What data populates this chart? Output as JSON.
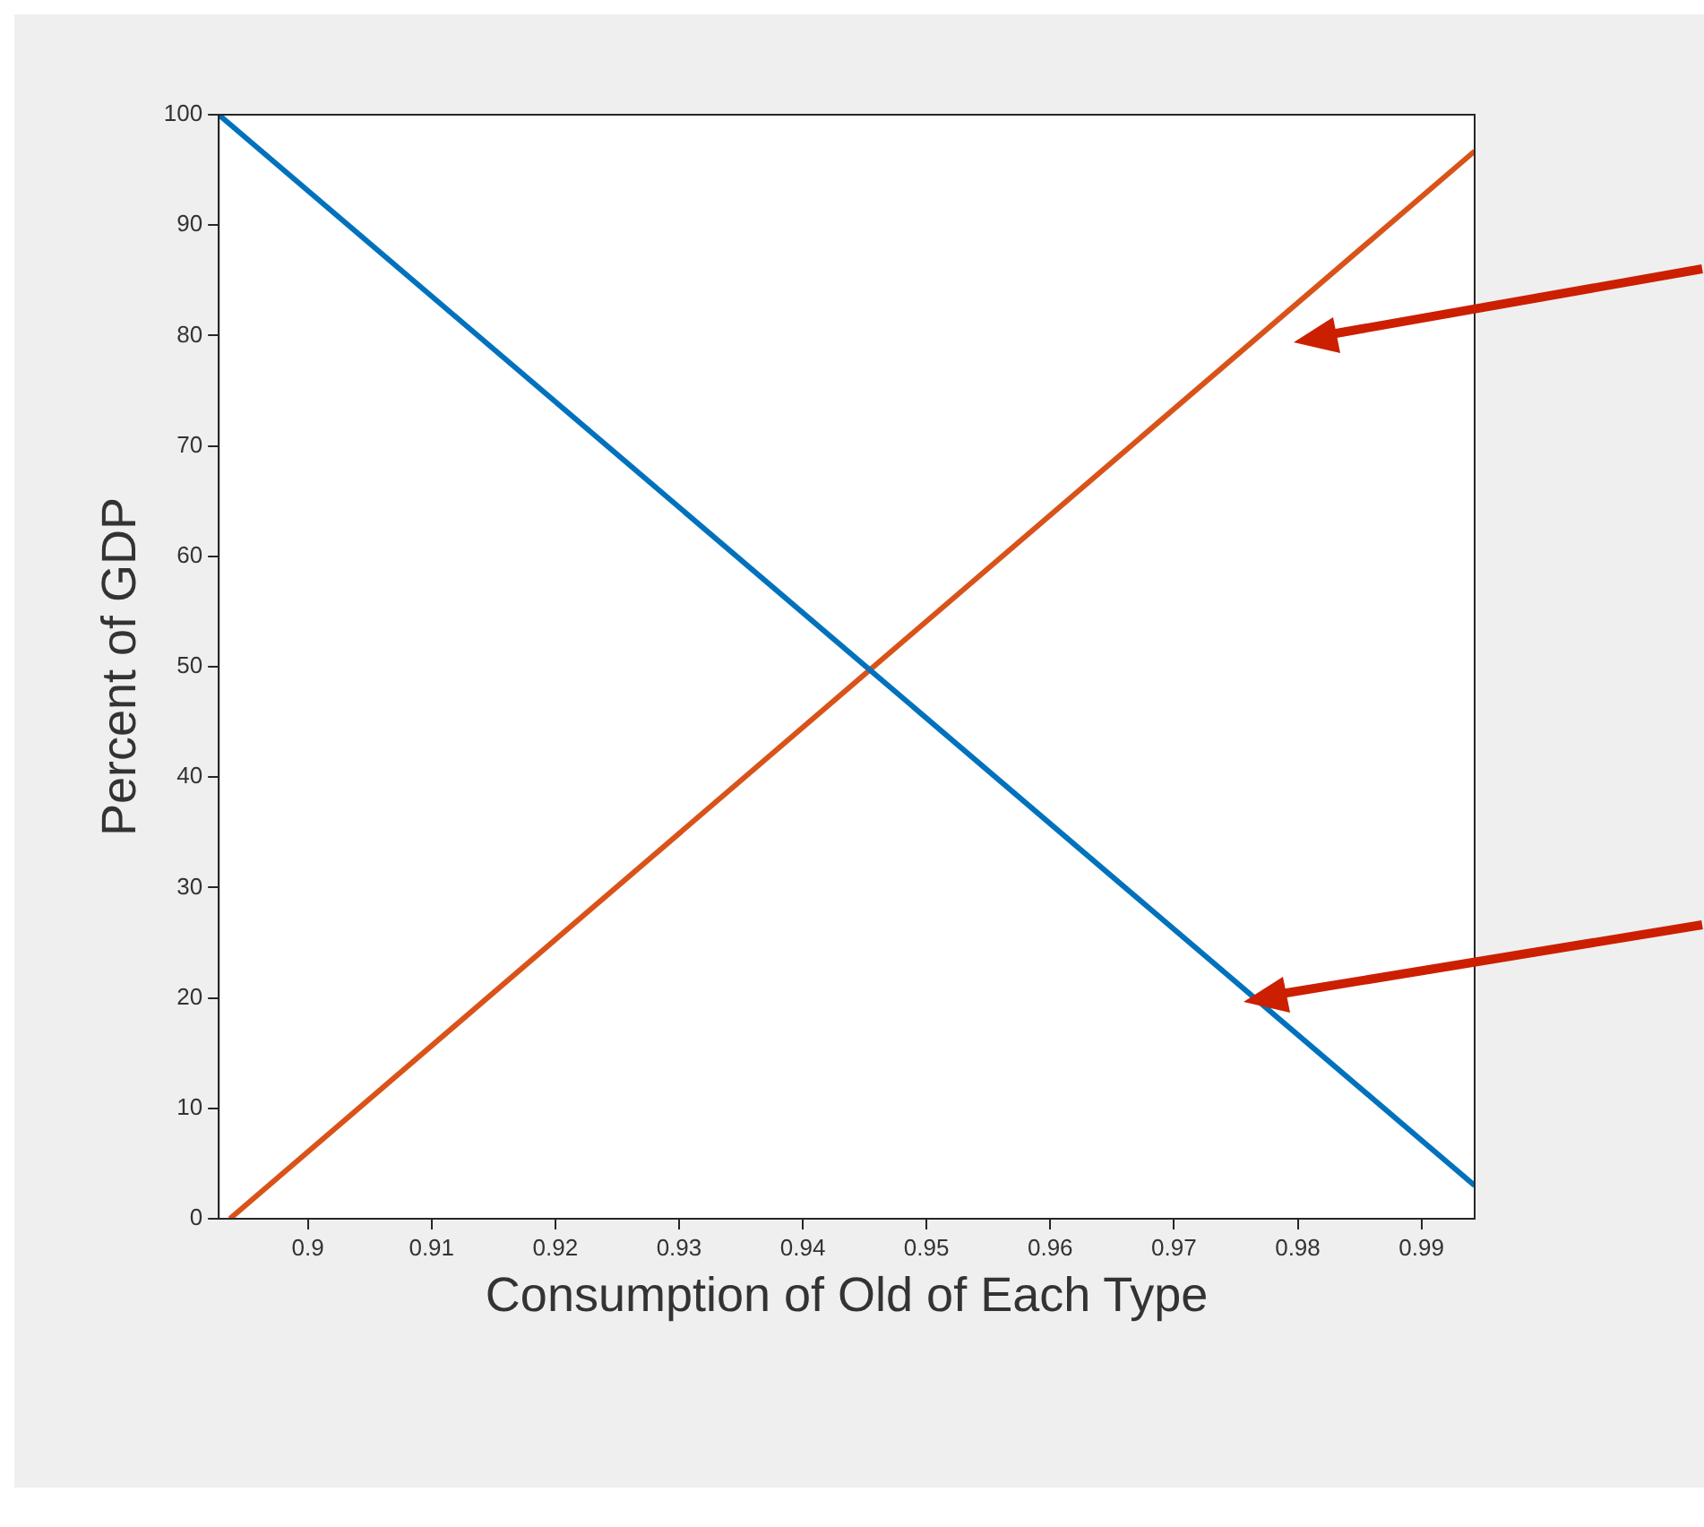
{
  "chart_data": {
    "type": "line",
    "xlabel": "Consumption of Old of Each Type",
    "ylabel": "Percent of GDP",
    "xlim": [
      0.8928,
      0.9943
    ],
    "xticks": [
      {
        "value": 0.9,
        "label": "0.9"
      },
      0.91,
      0.92,
      0.93,
      0.94,
      0.95,
      0.96,
      0.97,
      0.98,
      0.99
    ],
    "ylim": [
      0,
      100
    ],
    "yticks": [
      0,
      10,
      20,
      30,
      40,
      50,
      60,
      70,
      80,
      90,
      100
    ],
    "grid": false,
    "legend": false,
    "marker": "none",
    "line_style": "solid",
    "series": [
      {
        "color": "#0072bd",
        "x": [
          0.8928,
          0.9943
        ],
        "values": [
          100,
          3
        ]
      },
      {
        "color": "#d95319",
        "x": [
          0.8937,
          0.9943
        ],
        "values": [
          0,
          96.7
        ]
      }
    ]
  }
}
